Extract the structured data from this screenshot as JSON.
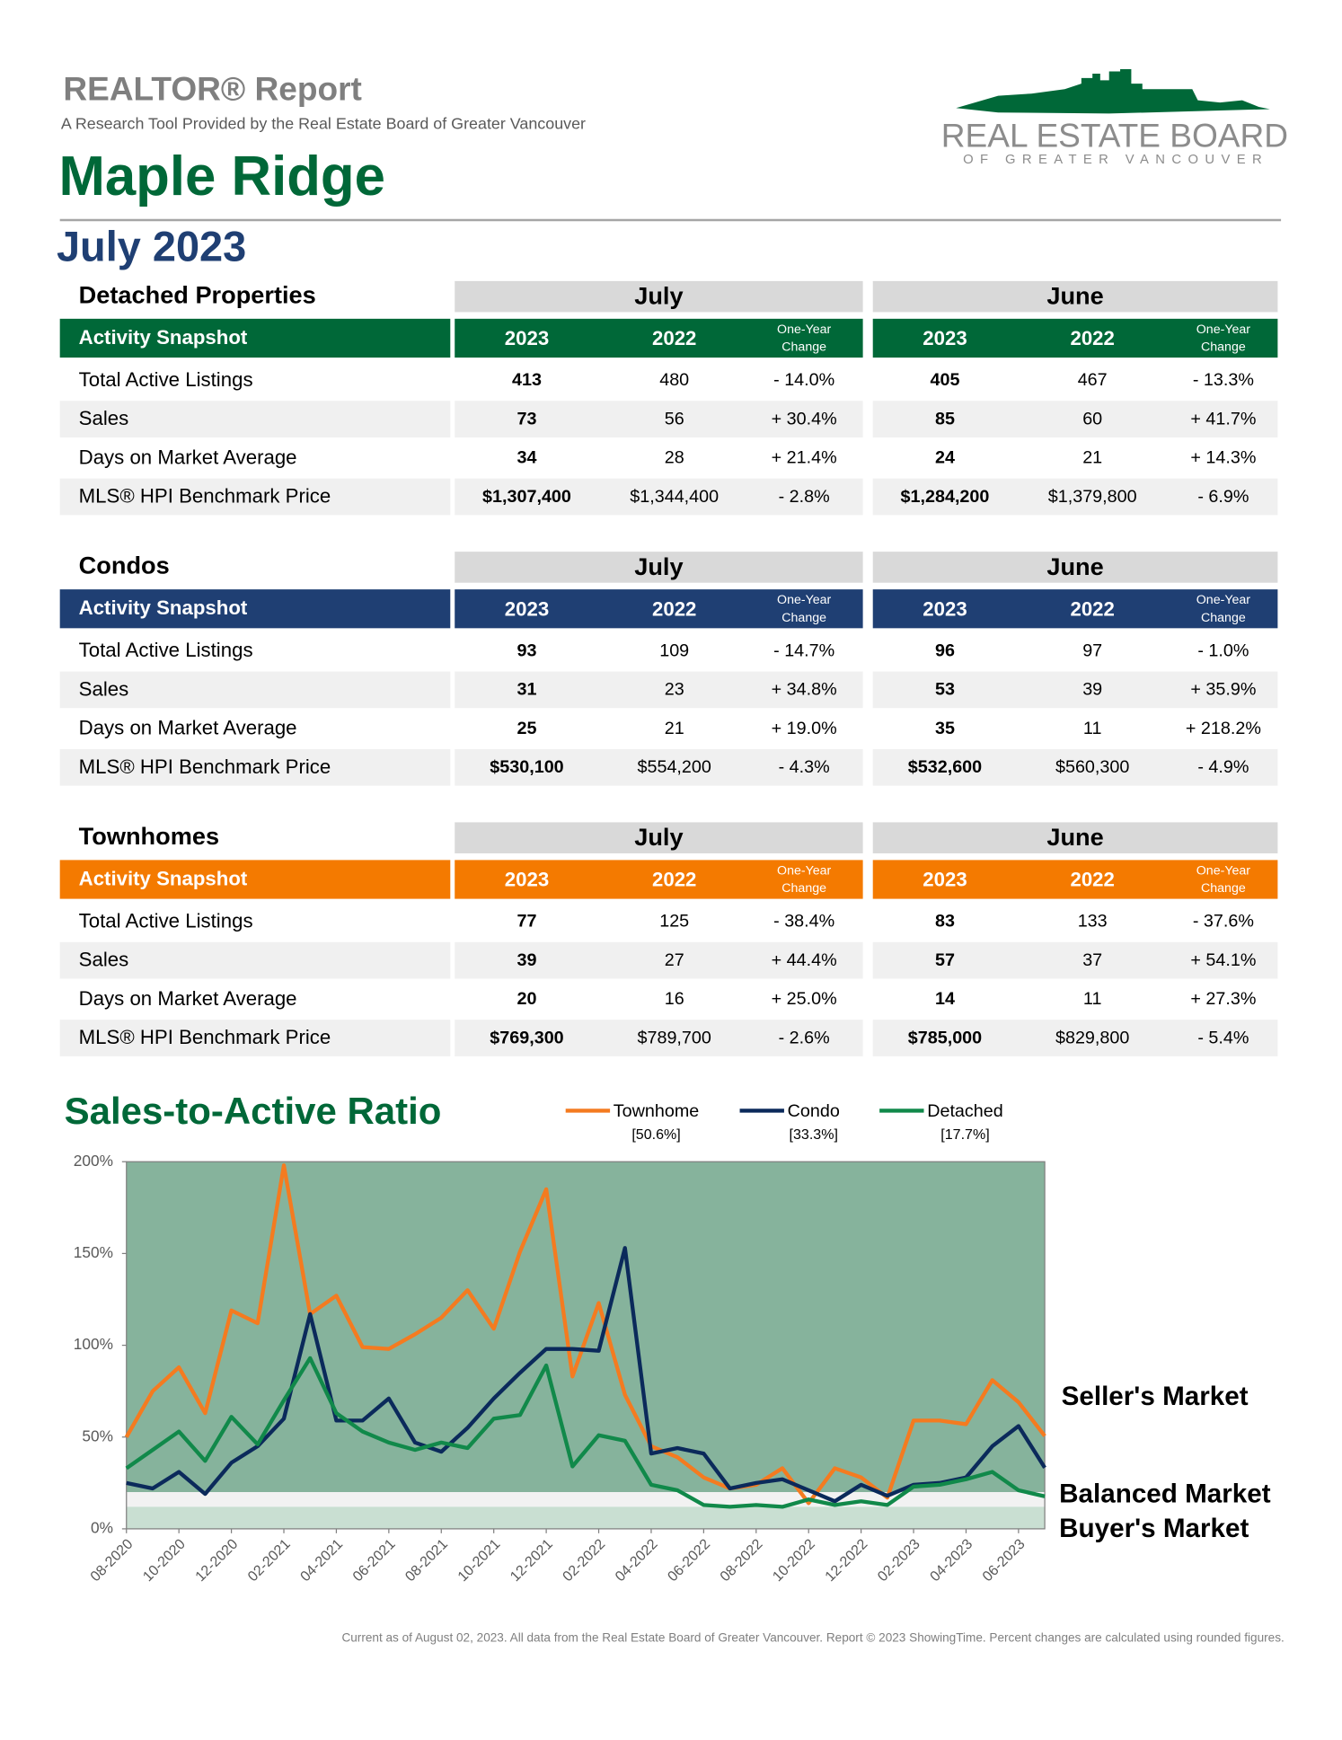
{
  "header": {
    "title": "REALTOR® Report",
    "subtitle": "A Research Tool Provided by the Real Estate Board of Greater Vancouver",
    "area": "Maple Ridge",
    "period": "July 2023",
    "logo_main": "REAL ESTATE BOARD",
    "logo_sub": "OF GREATER VANCOUVER"
  },
  "sections": [
    {
      "title": "Detached Properties",
      "snapshot": "Activity Snapshot",
      "color": "#006838",
      "periods": [
        {
          "month": "July",
          "columns": [
            "2023",
            "2022",
            "One-Year Change"
          ]
        },
        {
          "month": "June",
          "columns": [
            "2023",
            "2022",
            "One-Year Change"
          ]
        }
      ],
      "rows": [
        {
          "label": "Total Active Listings",
          "values": [
            "413",
            "480",
            "- 14.0%",
            "405",
            "467",
            "- 13.3%"
          ]
        },
        {
          "label": "Sales",
          "values": [
            "73",
            "56",
            "+ 30.4%",
            "85",
            "60",
            "+ 41.7%"
          ]
        },
        {
          "label": "Days on Market Average",
          "values": [
            "34",
            "28",
            "+ 21.4%",
            "24",
            "21",
            "+ 14.3%"
          ]
        },
        {
          "label": "MLS® HPI Benchmark Price",
          "values": [
            "$1,307,400",
            "$1,344,400",
            "- 2.8%",
            "$1,284,200",
            "$1,379,800",
            "- 6.9%"
          ]
        }
      ]
    },
    {
      "title": "Condos",
      "snapshot": "Activity Snapshot",
      "color": "#1f3f73",
      "periods": [
        {
          "month": "July",
          "columns": [
            "2023",
            "2022",
            "One-Year Change"
          ]
        },
        {
          "month": "June",
          "columns": [
            "2023",
            "2022",
            "One-Year Change"
          ]
        }
      ],
      "rows": [
        {
          "label": "Total Active Listings",
          "values": [
            "93",
            "109",
            "- 14.7%",
            "96",
            "97",
            "- 1.0%"
          ]
        },
        {
          "label": "Sales",
          "values": [
            "31",
            "23",
            "+ 34.8%",
            "53",
            "39",
            "+ 35.9%"
          ]
        },
        {
          "label": "Days on Market Average",
          "values": [
            "25",
            "21",
            "+ 19.0%",
            "35",
            "11",
            "+ 218.2%"
          ]
        },
        {
          "label": "MLS® HPI Benchmark Price",
          "values": [
            "$530,100",
            "$554,200",
            "- 4.3%",
            "$532,600",
            "$560,300",
            "- 4.9%"
          ]
        }
      ]
    },
    {
      "title": "Townhomes",
      "snapshot": "Activity Snapshot",
      "color": "#f47a00",
      "periods": [
        {
          "month": "July",
          "columns": [
            "2023",
            "2022",
            "One-Year Change"
          ]
        },
        {
          "month": "June",
          "columns": [
            "2023",
            "2022",
            "One-Year Change"
          ]
        }
      ],
      "rows": [
        {
          "label": "Total Active Listings",
          "values": [
            "77",
            "125",
            "- 38.4%",
            "83",
            "133",
            "- 37.6%"
          ]
        },
        {
          "label": "Sales",
          "values": [
            "39",
            "27",
            "+ 44.4%",
            "57",
            "37",
            "+ 54.1%"
          ]
        },
        {
          "label": "Days on Market Average",
          "values": [
            "20",
            "16",
            "+ 25.0%",
            "14",
            "11",
            "+ 27.3%"
          ]
        },
        {
          "label": "MLS® HPI Benchmark Price",
          "values": [
            "$769,300",
            "$789,700",
            "- 2.6%",
            "$785,000",
            "$829,800",
            "- 5.4%"
          ]
        }
      ]
    }
  ],
  "chart_data": {
    "type": "line",
    "title": "Sales-to-Active Ratio",
    "x": [
      "08-2020",
      null,
      "10-2020",
      null,
      "12-2020",
      null,
      "02-2021",
      null,
      "04-2021",
      null,
      "06-2021",
      null,
      "08-2021",
      null,
      "10-2021",
      null,
      "12-2021",
      null,
      "02-2022",
      null,
      "04-2022",
      null,
      "06-2022",
      null,
      "08-2022",
      null,
      "10-2022",
      null,
      "12-2022",
      null,
      "02-2023",
      null,
      "04-2023",
      null,
      "06-2023",
      null
    ],
    "series": [
      {
        "name": "Townhome",
        "label": "[50.6%]",
        "color": "#f47b20",
        "values": [
          50,
          75,
          88,
          63,
          119,
          112,
          198,
          117,
          127,
          99,
          98,
          106,
          115,
          130,
          109,
          151,
          185,
          83,
          123,
          73,
          45,
          39,
          28,
          22,
          24,
          33,
          14,
          33,
          28,
          17,
          59,
          59,
          57,
          81,
          69,
          50.6
        ]
      },
      {
        "name": "Condo",
        "label": "[33.3%]",
        "color": "#0b2a5b",
        "values": [
          25,
          22,
          31,
          19,
          36,
          45,
          60,
          117,
          59,
          59,
          71,
          47,
          42,
          55,
          71,
          85,
          98,
          98,
          97,
          153,
          41,
          44,
          41,
          22,
          25,
          27,
          21,
          15,
          24,
          18,
          24,
          25,
          28,
          45,
          56,
          33.3
        ]
      },
      {
        "name": "Detached",
        "label": "[17.7%]",
        "color": "#11894a",
        "values": [
          33,
          43,
          53,
          37,
          61,
          46,
          70,
          93,
          63,
          53,
          47,
          43,
          47,
          44,
          60,
          62,
          89,
          34,
          51,
          48,
          24,
          21,
          13,
          12,
          13,
          12,
          16,
          13,
          15,
          13,
          23,
          24,
          27,
          31,
          21,
          17.7
        ]
      }
    ],
    "zones": [
      {
        "label": "Seller's Market",
        "from": 20,
        "to": 200,
        "color": "#86b39c"
      },
      {
        "label": "Balanced Market",
        "from": 12,
        "to": 20,
        "color": "#f2f2f2"
      },
      {
        "label": "Buyer's Market",
        "from": 0,
        "to": 12,
        "color": "#c9dfd2"
      }
    ],
    "ylim": [
      0,
      200
    ],
    "yticks": [
      {
        "value": 0,
        "label": "0%"
      },
      {
        "value": 50,
        "label": "50%"
      },
      {
        "value": 100,
        "label": "100%"
      },
      {
        "value": 150,
        "label": "150%"
      },
      {
        "value": 200,
        "label": "200%"
      }
    ]
  },
  "footer": "Current as of August 02, 2023. All data from the Real Estate Board of Greater Vancouver. Report © 2023 ShowingTime. Percent changes are calculated using rounded figures."
}
